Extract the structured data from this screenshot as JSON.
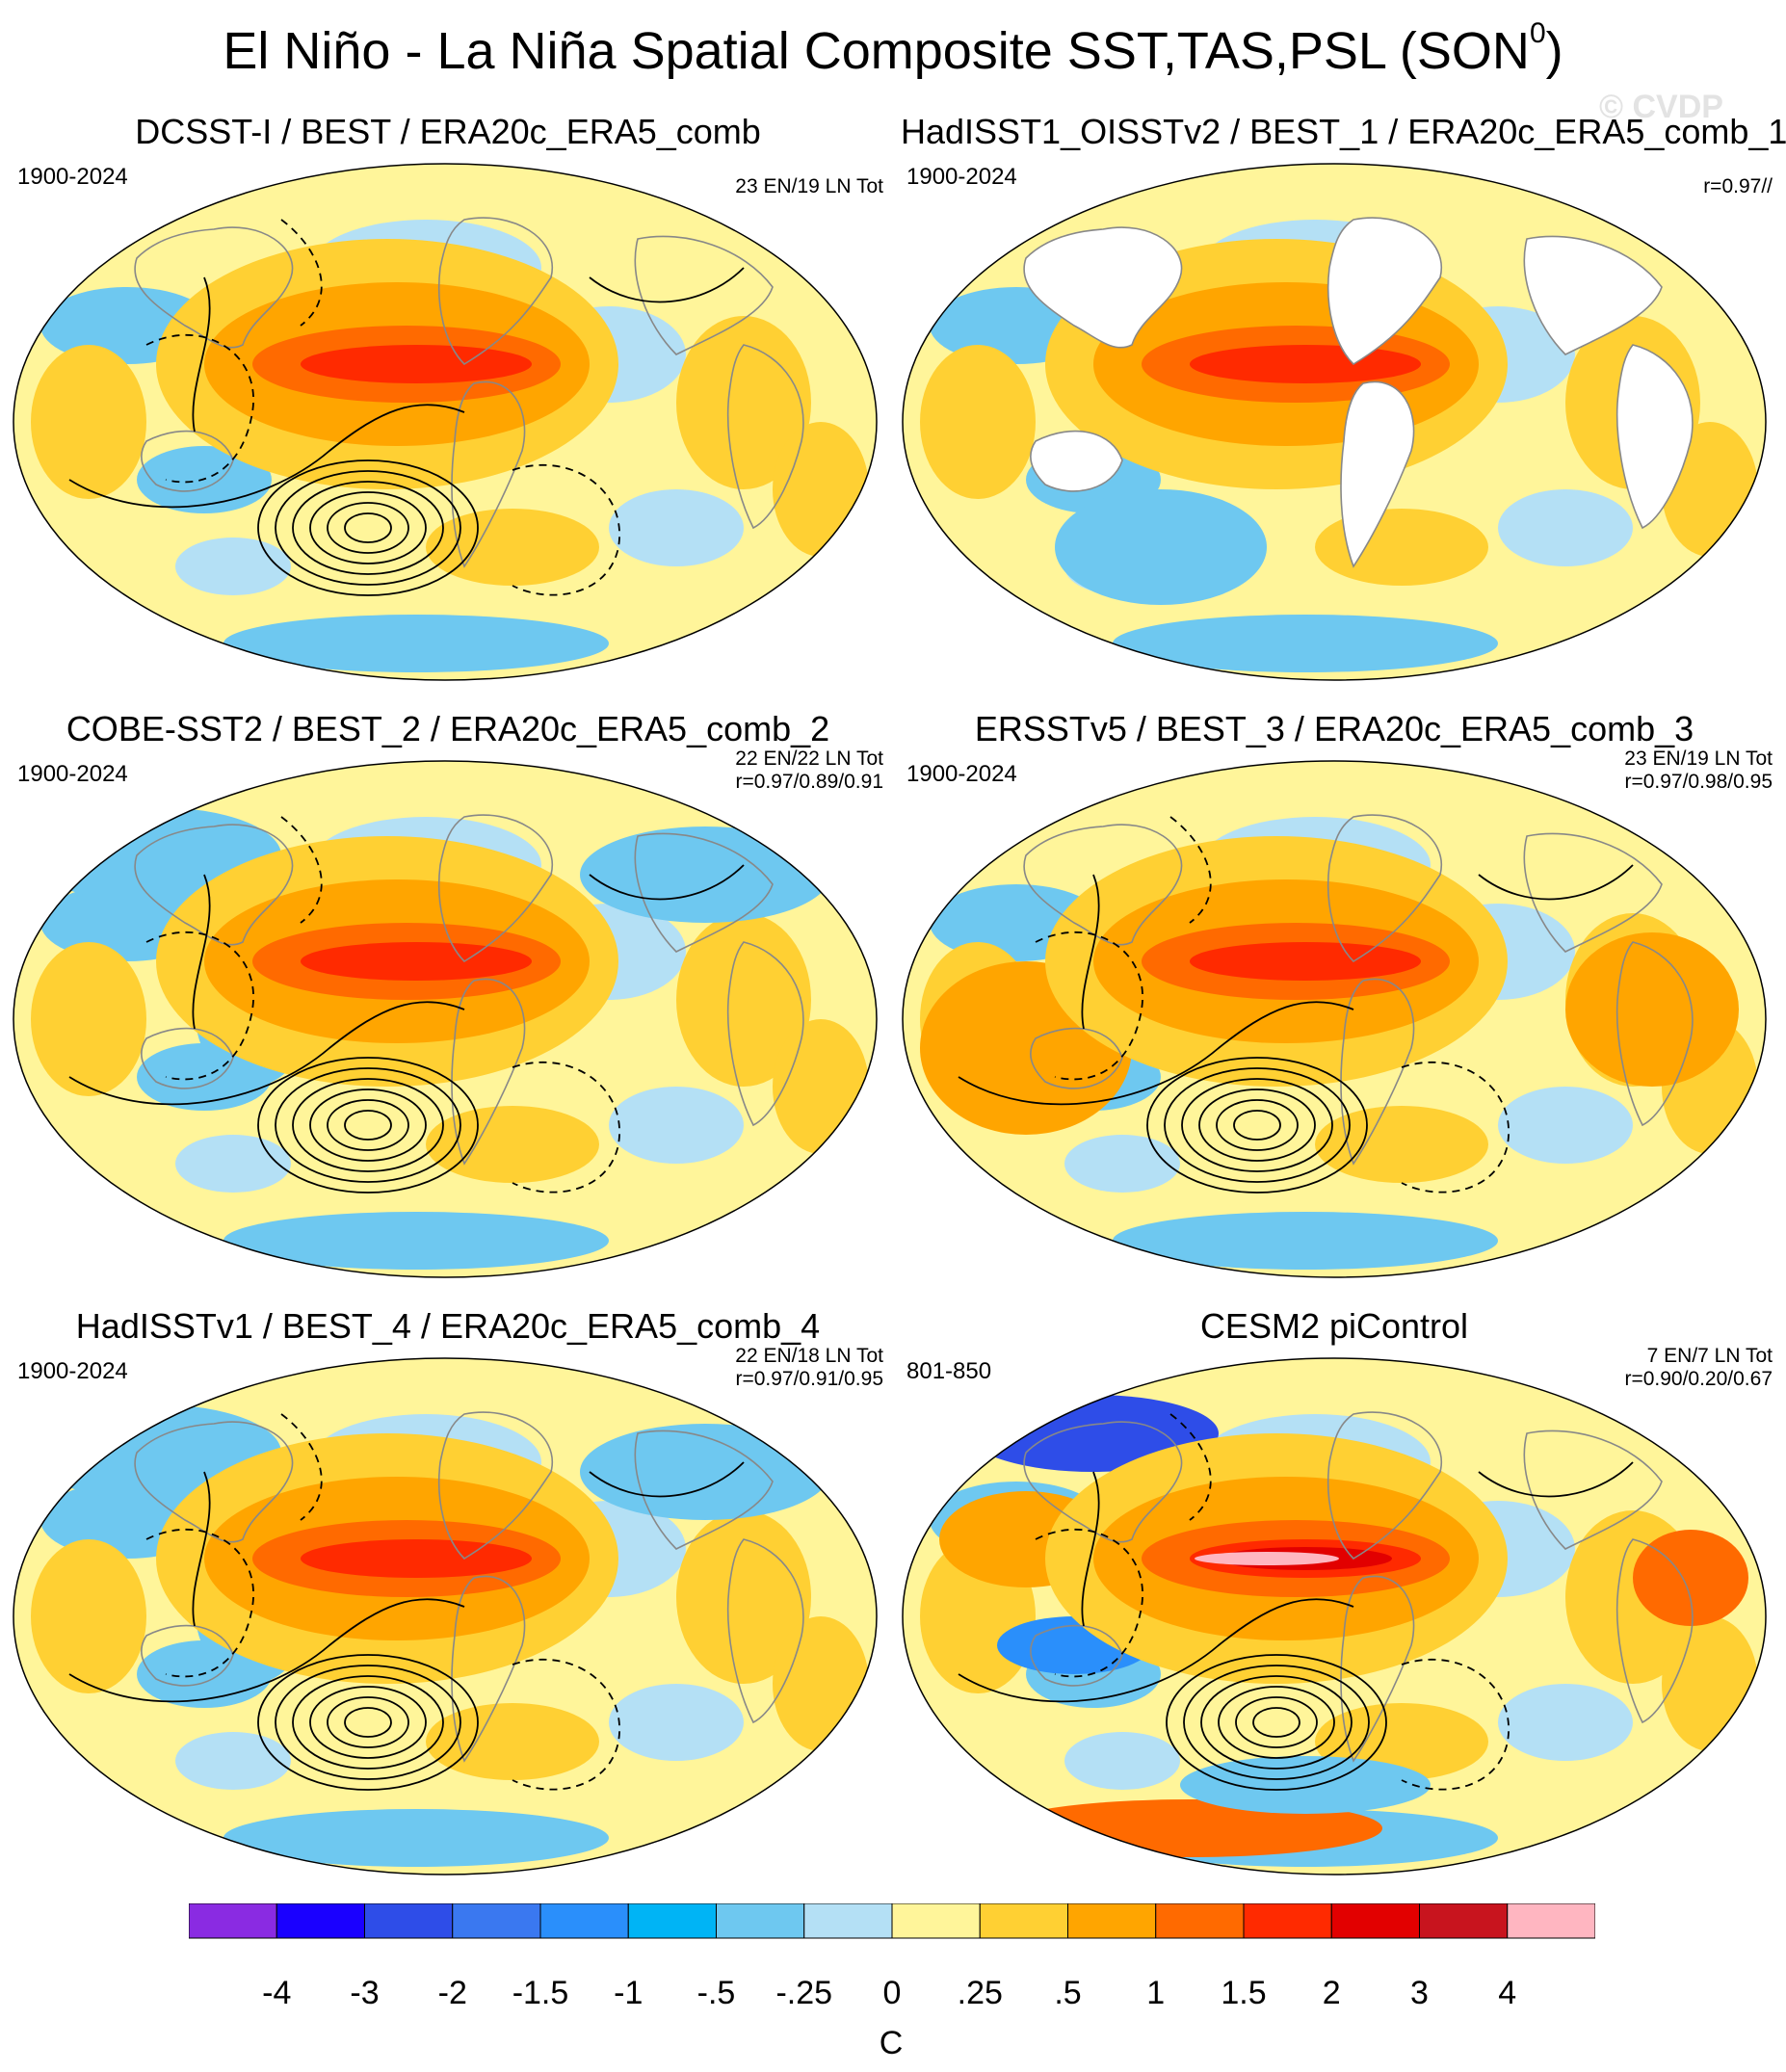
{
  "title": "El Niño - La Niña Spatial Composite SST,TAS,PSL (SON",
  "title_superscript": "0",
  "title_close": ")",
  "watermark": "© CVDP",
  "panels": [
    {
      "title": "DCSST-I / BEST / ERA20c_ERA5_comb",
      "period": "1900-2024",
      "counts": "23 EN/19 LN Tot",
      "corr": "",
      "variant": "full",
      "land": "mixed"
    },
    {
      "title": "HadISST1_OISSTv2 / BEST_1 / ERA20c_ERA5_comb_1",
      "period": "1900-2024",
      "counts": "",
      "corr": "r=0.97//",
      "variant": "ocean-only",
      "land": "white"
    },
    {
      "title": "COBE-SST2 / BEST_2 / ERA20c_ERA5_comb_2",
      "period": "1900-2024",
      "counts": "22 EN/22 LN Tot",
      "corr": "r=0.97/0.89/0.91",
      "variant": "full",
      "land": "cool"
    },
    {
      "title": "ERSSTv5 / BEST_3 / ERA20c_ERA5_comb_3",
      "period": "1900-2024",
      "counts": "23 EN/19 LN Tot",
      "corr": "r=0.97/0.98/0.95",
      "variant": "full",
      "land": "warm"
    },
    {
      "title": "HadISSTv1 / BEST_4 / ERA20c_ERA5_comb_4",
      "period": "1900-2024",
      "counts": "22 EN/18 LN Tot",
      "corr": "r=0.97/0.91/0.95",
      "variant": "full",
      "land": "cool"
    },
    {
      "title": "CESM2 piControl",
      "period": "801-850",
      "counts": "7 EN/7 LN Tot",
      "corr": "r=0.90/0.20/0.67",
      "variant": "model",
      "land": "strong"
    }
  ],
  "colorbar": {
    "units": "C",
    "colors": [
      "#8a2be2",
      "#1a00ff",
      "#2e4de8",
      "#3a78f0",
      "#2a8ffb",
      "#00b4f5",
      "#6ec8f0",
      "#b4e0f5",
      "#fff59a",
      "#ffd033",
      "#ffa500",
      "#ff6a00",
      "#ff2a00",
      "#e20000",
      "#c8141e",
      "#ffb6c1"
    ],
    "labels": [
      "-4",
      "-3",
      "-2",
      "-1.5",
      "-1",
      "-.5",
      "-.25",
      "0",
      ".25",
      ".5",
      "1",
      "1.5",
      "2",
      "3",
      "4"
    ]
  },
  "palette": {
    "deep_red": "#e20000",
    "red": "#ff2a00",
    "orange_red": "#ff6a00",
    "orange": "#ffa500",
    "gold": "#ffd033",
    "pale_yellow": "#fff59a",
    "pale_blue": "#b4e0f5",
    "light_blue": "#6ec8f0",
    "blue": "#2a8ffb",
    "dark_blue": "#2e4de8"
  }
}
